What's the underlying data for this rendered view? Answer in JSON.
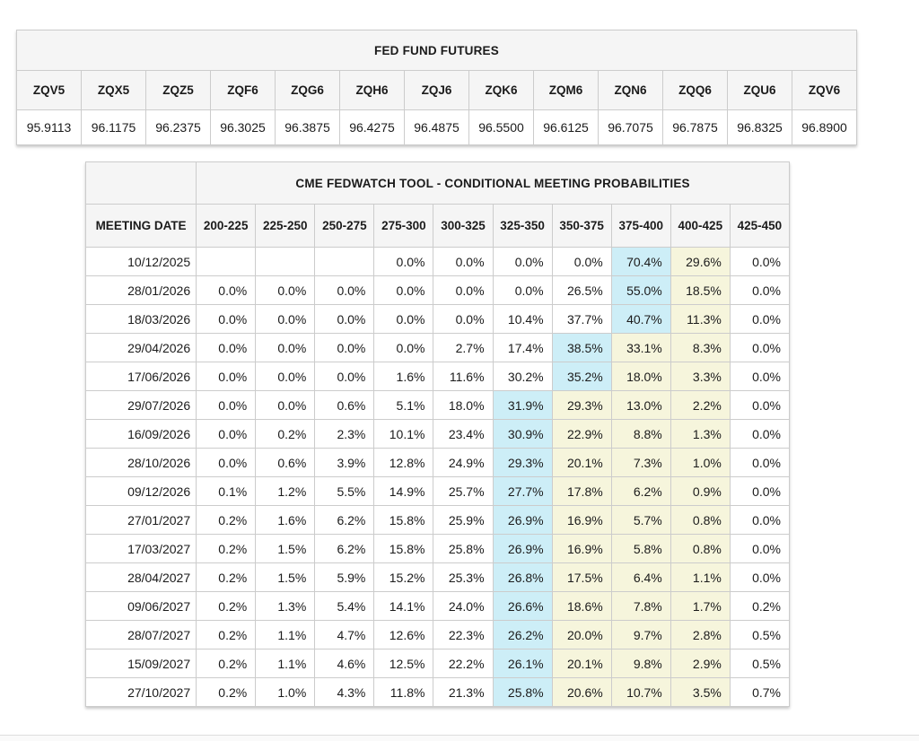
{
  "colors": {
    "highlight_blue": "#cdeef7",
    "highlight_yellow": "#f6f5dc",
    "header_bg": "#f5f5f5",
    "border": "#cccccc"
  },
  "futures_table": {
    "title": "FED FUND FUTURES",
    "columns": [
      {
        "symbol": "ZQV5",
        "price": "95.9113"
      },
      {
        "symbol": "ZQX5",
        "price": "96.1175"
      },
      {
        "symbol": "ZQZ5",
        "price": "96.2375"
      },
      {
        "symbol": "ZQF6",
        "price": "96.3025"
      },
      {
        "symbol": "ZQG6",
        "price": "96.3875"
      },
      {
        "symbol": "ZQH6",
        "price": "96.4275"
      },
      {
        "symbol": "ZQJ6",
        "price": "96.4875"
      },
      {
        "symbol": "ZQK6",
        "price": "96.5500"
      },
      {
        "symbol": "ZQM6",
        "price": "96.6125"
      },
      {
        "symbol": "ZQN6",
        "price": "96.7075"
      },
      {
        "symbol": "ZQQ6",
        "price": "96.7875"
      },
      {
        "symbol": "ZQU6",
        "price": "96.8325"
      },
      {
        "symbol": "ZQV6",
        "price": "96.8900"
      }
    ]
  },
  "fedwatch_table": {
    "title": "CME FEDWATCH TOOL - CONDITIONAL MEETING PROBABILITIES",
    "date_header": "MEETING DATE",
    "rate_headers": [
      "200-225",
      "225-250",
      "250-275",
      "275-300",
      "300-325",
      "325-350",
      "350-375",
      "375-400",
      "400-425",
      "425-450"
    ],
    "rows": [
      {
        "date": "10/12/2025",
        "cells": [
          "",
          "",
          "",
          "0.0%",
          "0.0%",
          "0.0%",
          "0.0%",
          "70.4%",
          "29.6%",
          "0.0%"
        ],
        "highlight": [
          "",
          "",
          "",
          "",
          "",
          "",
          "",
          "blue",
          "yellow",
          ""
        ]
      },
      {
        "date": "28/01/2026",
        "cells": [
          "0.0%",
          "0.0%",
          "0.0%",
          "0.0%",
          "0.0%",
          "0.0%",
          "26.5%",
          "55.0%",
          "18.5%",
          "0.0%"
        ],
        "highlight": [
          "",
          "",
          "",
          "",
          "",
          "",
          "",
          "blue",
          "yellow",
          ""
        ]
      },
      {
        "date": "18/03/2026",
        "cells": [
          "0.0%",
          "0.0%",
          "0.0%",
          "0.0%",
          "0.0%",
          "10.4%",
          "37.7%",
          "40.7%",
          "11.3%",
          "0.0%"
        ],
        "highlight": [
          "",
          "",
          "",
          "",
          "",
          "",
          "",
          "blue",
          "yellow",
          ""
        ]
      },
      {
        "date": "29/04/2026",
        "cells": [
          "0.0%",
          "0.0%",
          "0.0%",
          "0.0%",
          "2.7%",
          "17.4%",
          "38.5%",
          "33.1%",
          "8.3%",
          "0.0%"
        ],
        "highlight": [
          "",
          "",
          "",
          "",
          "",
          "",
          "blue",
          "yellow",
          "yellow",
          ""
        ]
      },
      {
        "date": "17/06/2026",
        "cells": [
          "0.0%",
          "0.0%",
          "0.0%",
          "1.6%",
          "11.6%",
          "30.2%",
          "35.2%",
          "18.0%",
          "3.3%",
          "0.0%"
        ],
        "highlight": [
          "",
          "",
          "",
          "",
          "",
          "",
          "blue",
          "yellow",
          "yellow",
          ""
        ]
      },
      {
        "date": "29/07/2026",
        "cells": [
          "0.0%",
          "0.0%",
          "0.6%",
          "5.1%",
          "18.0%",
          "31.9%",
          "29.3%",
          "13.0%",
          "2.2%",
          "0.0%"
        ],
        "highlight": [
          "",
          "",
          "",
          "",
          "",
          "blue",
          "yellow",
          "yellow",
          "yellow",
          ""
        ]
      },
      {
        "date": "16/09/2026",
        "cells": [
          "0.0%",
          "0.2%",
          "2.3%",
          "10.1%",
          "23.4%",
          "30.9%",
          "22.9%",
          "8.8%",
          "1.3%",
          "0.0%"
        ],
        "highlight": [
          "",
          "",
          "",
          "",
          "",
          "blue",
          "yellow",
          "yellow",
          "yellow",
          ""
        ]
      },
      {
        "date": "28/10/2026",
        "cells": [
          "0.0%",
          "0.6%",
          "3.9%",
          "12.8%",
          "24.9%",
          "29.3%",
          "20.1%",
          "7.3%",
          "1.0%",
          "0.0%"
        ],
        "highlight": [
          "",
          "",
          "",
          "",
          "",
          "blue",
          "yellow",
          "yellow",
          "yellow",
          ""
        ]
      },
      {
        "date": "09/12/2026",
        "cells": [
          "0.1%",
          "1.2%",
          "5.5%",
          "14.9%",
          "25.7%",
          "27.7%",
          "17.8%",
          "6.2%",
          "0.9%",
          "0.0%"
        ],
        "highlight": [
          "",
          "",
          "",
          "",
          "",
          "blue",
          "yellow",
          "yellow",
          "yellow",
          ""
        ]
      },
      {
        "date": "27/01/2027",
        "cells": [
          "0.2%",
          "1.6%",
          "6.2%",
          "15.8%",
          "25.9%",
          "26.9%",
          "16.9%",
          "5.7%",
          "0.8%",
          "0.0%"
        ],
        "highlight": [
          "",
          "",
          "",
          "",
          "",
          "blue",
          "yellow",
          "yellow",
          "yellow",
          ""
        ]
      },
      {
        "date": "17/03/2027",
        "cells": [
          "0.2%",
          "1.5%",
          "6.2%",
          "15.8%",
          "25.8%",
          "26.9%",
          "16.9%",
          "5.8%",
          "0.8%",
          "0.0%"
        ],
        "highlight": [
          "",
          "",
          "",
          "",
          "",
          "blue",
          "yellow",
          "yellow",
          "yellow",
          ""
        ]
      },
      {
        "date": "28/04/2027",
        "cells": [
          "0.2%",
          "1.5%",
          "5.9%",
          "15.2%",
          "25.3%",
          "26.8%",
          "17.5%",
          "6.4%",
          "1.1%",
          "0.0%"
        ],
        "highlight": [
          "",
          "",
          "",
          "",
          "",
          "blue",
          "yellow",
          "yellow",
          "yellow",
          ""
        ]
      },
      {
        "date": "09/06/2027",
        "cells": [
          "0.2%",
          "1.3%",
          "5.4%",
          "14.1%",
          "24.0%",
          "26.6%",
          "18.6%",
          "7.8%",
          "1.7%",
          "0.2%"
        ],
        "highlight": [
          "",
          "",
          "",
          "",
          "",
          "blue",
          "yellow",
          "yellow",
          "yellow",
          ""
        ]
      },
      {
        "date": "28/07/2027",
        "cells": [
          "0.2%",
          "1.1%",
          "4.7%",
          "12.6%",
          "22.3%",
          "26.2%",
          "20.0%",
          "9.7%",
          "2.8%",
          "0.5%"
        ],
        "highlight": [
          "",
          "",
          "",
          "",
          "",
          "blue",
          "yellow",
          "yellow",
          "yellow",
          ""
        ]
      },
      {
        "date": "15/09/2027",
        "cells": [
          "0.2%",
          "1.1%",
          "4.6%",
          "12.5%",
          "22.2%",
          "26.1%",
          "20.1%",
          "9.8%",
          "2.9%",
          "0.5%"
        ],
        "highlight": [
          "",
          "",
          "",
          "",
          "",
          "blue",
          "yellow",
          "yellow",
          "yellow",
          ""
        ]
      },
      {
        "date": "27/10/2027",
        "cells": [
          "0.2%",
          "1.0%",
          "4.3%",
          "11.8%",
          "21.3%",
          "25.8%",
          "20.6%",
          "10.7%",
          "3.5%",
          "0.7%"
        ],
        "highlight": [
          "",
          "",
          "",
          "",
          "",
          "blue",
          "yellow",
          "yellow",
          "yellow",
          ""
        ]
      }
    ]
  }
}
